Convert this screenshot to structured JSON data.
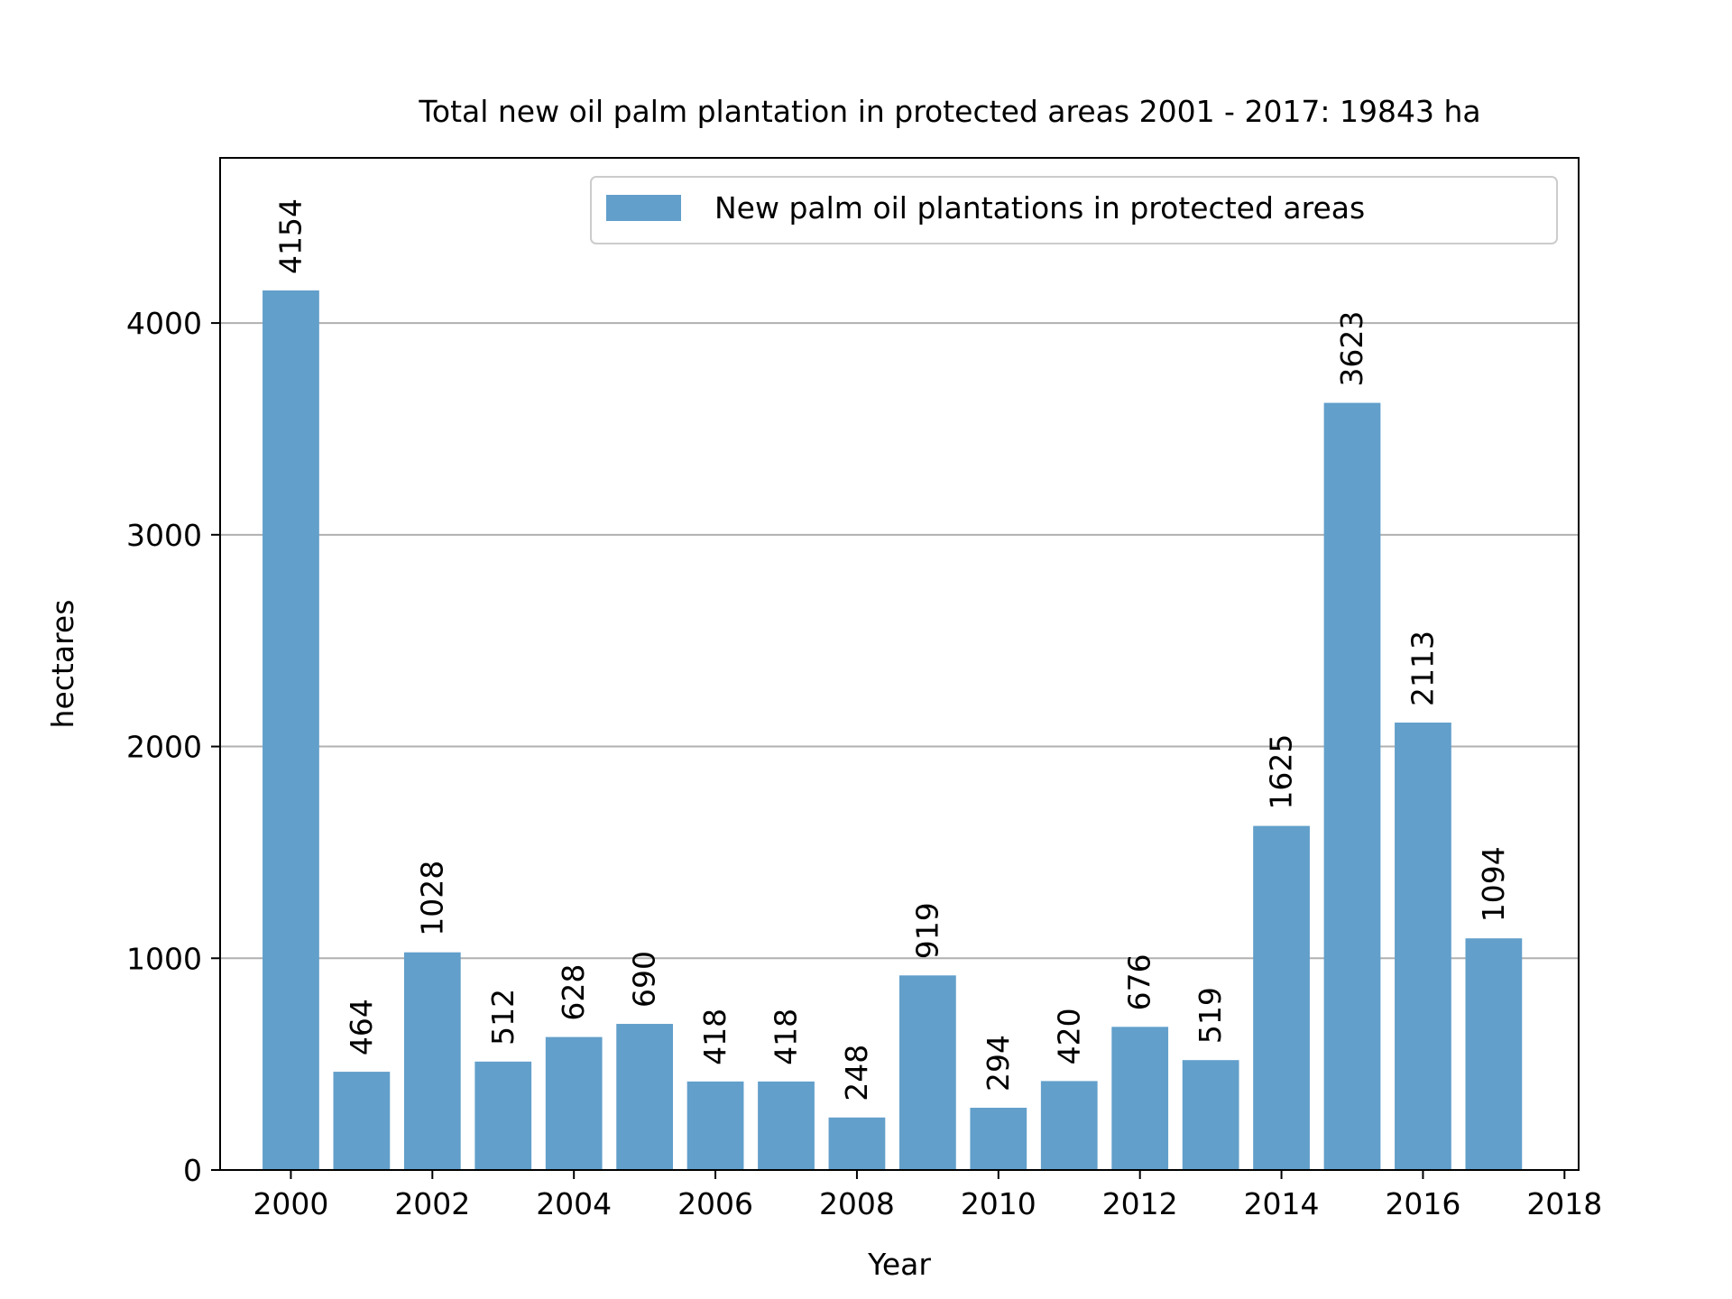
{
  "chart_data": {
    "type": "bar",
    "title": "Total new oil palm plantation in protected areas 2001 - 2017: 19843 ha",
    "xlabel": "Year",
    "ylabel": "hectares",
    "categories": [
      2000,
      2001,
      2002,
      2003,
      2004,
      2005,
      2006,
      2007,
      2008,
      2009,
      2010,
      2011,
      2012,
      2013,
      2014,
      2015,
      2016,
      2017
    ],
    "series": [
      {
        "name": "New palm oil plantations in protected areas",
        "values": [
          4154,
          464,
          1028,
          512,
          628,
          690,
          418,
          418,
          248,
          919,
          294,
          420,
          676,
          519,
          1625,
          3623,
          2113,
          1094
        ]
      }
    ],
    "bar_labels": [
      "4154",
      "464",
      "1028",
      "512",
      "628",
      "690",
      "418",
      "418",
      "248",
      "919",
      "294",
      "420",
      "676",
      "519",
      "1625",
      "3623",
      "2113",
      "1094"
    ],
    "xlim": [
      1999.0,
      2018.2
    ],
    "ylim": [
      0,
      4780
    ],
    "x_ticks": [
      2000,
      2002,
      2004,
      2006,
      2008,
      2010,
      2012,
      2014,
      2016,
      2018
    ],
    "x_tick_labels": [
      "2000",
      "2002",
      "2004",
      "2006",
      "2008",
      "2010",
      "2012",
      "2014",
      "2016",
      "2018"
    ],
    "y_ticks": [
      0,
      1000,
      2000,
      3000,
      4000
    ],
    "y_tick_labels": [
      "0",
      "1000",
      "2000",
      "3000",
      "4000"
    ],
    "grid": "horizontal",
    "legend_position": "top-right",
    "bar_color": "#629fcb",
    "grid_color": "#b0b0b0"
  }
}
